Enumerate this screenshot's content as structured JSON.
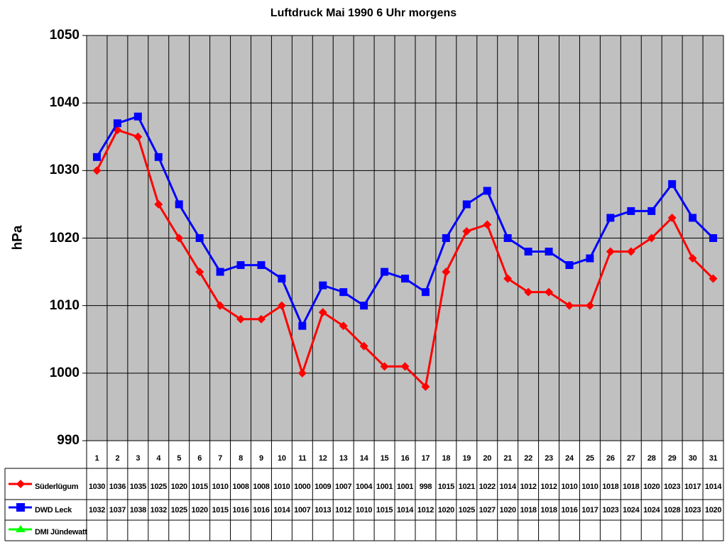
{
  "chart_data": {
    "type": "line",
    "title": "Luftdruck Mai 1990 6 Uhr morgens",
    "xlabel": "",
    "ylabel": "hPa",
    "ylim": [
      990,
      1050
    ],
    "yticks": [
      990,
      1000,
      1010,
      1020,
      1030,
      1040,
      1050
    ],
    "grid": true,
    "legend_position": "data-table-left",
    "categories": [
      "1",
      "2",
      "3",
      "4",
      "5",
      "6",
      "7",
      "8",
      "9",
      "10",
      "11",
      "12",
      "13",
      "14",
      "15",
      "16",
      "17",
      "18",
      "19",
      "20",
      "21",
      "22",
      "23",
      "24",
      "25",
      "26",
      "27",
      "28",
      "29",
      "30",
      "31"
    ],
    "series": [
      {
        "name": "Süderlügum",
        "color": "#ff0000",
        "marker": "diamond",
        "values": [
          1030,
          1036,
          1035,
          1025,
          1020,
          1015,
          1010,
          1008,
          1008,
          1010,
          1000,
          1009,
          1007,
          1004,
          1001,
          1001,
          998,
          1015,
          1021,
          1022,
          1014,
          1012,
          1012,
          1010,
          1010,
          1018,
          1018,
          1020,
          1023,
          1017,
          1014
        ]
      },
      {
        "name": "DWD Leck",
        "color": "#0000ff",
        "marker": "square",
        "values": [
          1032,
          1037,
          1038,
          1032,
          1025,
          1020,
          1015,
          1016,
          1016,
          1014,
          1007,
          1013,
          1012,
          1010,
          1015,
          1014,
          1012,
          1020,
          1025,
          1027,
          1020,
          1018,
          1018,
          1016,
          1017,
          1023,
          1024,
          1024,
          1028,
          1023,
          1020
        ]
      },
      {
        "name": "DMI Jündewatt",
        "color": "#00ff00",
        "marker": "triangle",
        "values": []
      }
    ],
    "plot_background": "#c0c0c0"
  }
}
